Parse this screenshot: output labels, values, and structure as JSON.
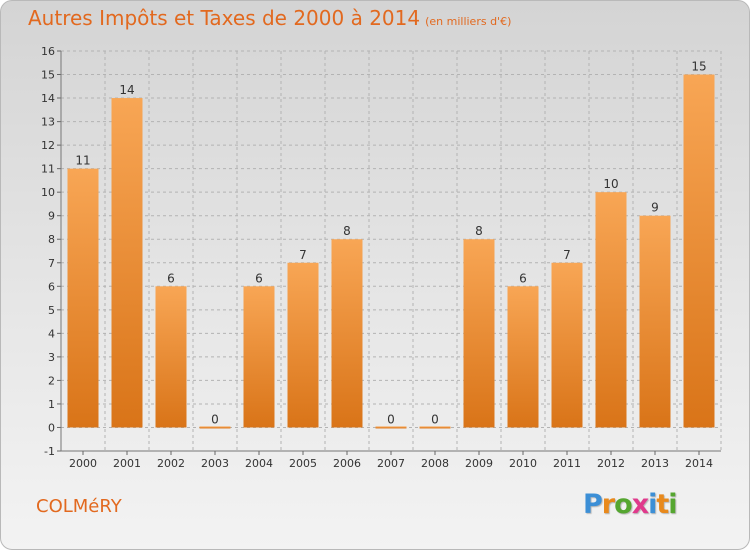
{
  "header": {
    "title": "Autres Impôts et Taxes de 2000 à 2014",
    "unit": "(en milliers d'€)"
  },
  "footer": {
    "commune": "COLMéRY",
    "logo": [
      "P",
      "r",
      "o",
      "x",
      "i",
      "t",
      "i"
    ],
    "logo_colors": [
      "#3c8fd6",
      "#e8891c",
      "#55a630",
      "#e03a8c",
      "#3c8fd6",
      "#e8891c",
      "#55a630"
    ]
  },
  "colors": {
    "bar_light": "#f8a655",
    "bar_dark": "#d97418",
    "accent": "#e2691f",
    "grid": "#b3b3b3",
    "text": "#333333"
  },
  "chart_data": {
    "type": "bar",
    "title": "Autres Impôts et Taxes de 2000 à 2014",
    "subtitle": "(en milliers d'€)",
    "categories": [
      "2000",
      "2001",
      "2002",
      "2003",
      "2004",
      "2005",
      "2006",
      "2007",
      "2008",
      "2009",
      "2010",
      "2011",
      "2012",
      "2013",
      "2014"
    ],
    "values": [
      11,
      14,
      6,
      0,
      6,
      7,
      8,
      0,
      0,
      8,
      6,
      7,
      10,
      9,
      15
    ],
    "data_labels": [
      "11",
      "14",
      "6",
      "0",
      "6",
      "7",
      "8",
      "0",
      "0",
      "8",
      "6",
      "7",
      "10",
      "9",
      "15"
    ],
    "ylim": [
      -1,
      16
    ],
    "yticks": [
      "-1",
      "0",
      "1",
      "2",
      "3",
      "4",
      "5",
      "6",
      "7",
      "8",
      "9",
      "10",
      "11",
      "12",
      "13",
      "14",
      "15",
      "16"
    ],
    "grid": true
  }
}
